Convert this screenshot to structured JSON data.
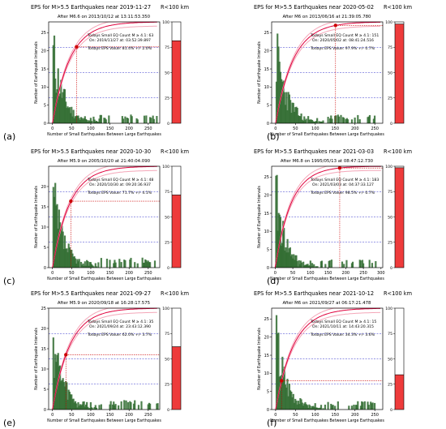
{
  "common": {
    "xlabel": "Number of Small Earthquakes Between Large Earthquakes",
    "ylabel": "Number of Earthquake Intervals",
    "radius": "R<100 km",
    "count_prefix": "Todays Small EQ Count M ≥ 4.1:",
    "on_label": "On:",
    "at_label": "at:",
    "eps_prefix": "Todays EPS Value:",
    "gauge_ticks": [
      "100",
      "75",
      "50",
      "25",
      "0"
    ],
    "colors": {
      "histogram": "#2f6b2f",
      "cdf": "#e0003c",
      "band": "#f4a6b8",
      "hline": "#3333cc",
      "marker": "#cc0000",
      "gauge_fill": "#ee3b3b"
    }
  },
  "chart_data": [
    {
      "type": "bar",
      "panel_label": "(a)",
      "title": "EPS for M>5.5 Earthquakes near 2019-11-27",
      "subtitle": "After M6.6 on 2013/10/12 at 13:11:53.350",
      "ylim": [
        0,
        28
      ],
      "yticks": [
        0,
        5,
        10,
        15,
        20,
        25
      ],
      "xlim": [
        -10,
        280
      ],
      "xticks": [
        0,
        50,
        100,
        150,
        200,
        250
      ],
      "count": "63",
      "date": "2019/11/27",
      "time": "03:52:39.897",
      "eps": "81.4% +/- 2.0%",
      "eps_value": 81.4,
      "marker_x": 63
    },
    {
      "type": "bar",
      "panel_label": "(b)",
      "title": "EPS for M>5.5 Earthquakes near 2020-05-02",
      "subtitle": "After M6 on 2013/06/16 at 21:39:05.780",
      "ylim": [
        0,
        28
      ],
      "yticks": [
        0,
        5,
        10,
        15,
        20,
        25
      ],
      "xlim": [
        -10,
        270
      ],
      "xticks": [
        0,
        50,
        100,
        150,
        200,
        250
      ],
      "count": "151",
      "date": "2020/05/02",
      "time": "08:41:24.516",
      "eps": "97.9% +/- 0.7%",
      "eps_value": 97.9,
      "marker_x": 151
    },
    {
      "type": "bar",
      "panel_label": "(c)",
      "title": "EPS for M>5.5 Earthquakes near 2020-10-30",
      "subtitle": "After M5.9 on 2005/10/20 at 21:40:04.090",
      "ylim": [
        0,
        25
      ],
      "yticks": [
        0,
        5,
        10,
        15,
        20
      ],
      "xlim": [
        -10,
        280
      ],
      "xticks": [
        0,
        50,
        100,
        150,
        200,
        250
      ],
      "count": "48",
      "date": "2020/10/30",
      "time": "09:20:36.937",
      "eps": "71.7% +/- 4.1%",
      "eps_value": 71.7,
      "marker_x": 48
    },
    {
      "type": "bar",
      "panel_label": "(d)",
      "title": "EPS for M>5.5 Earthquakes near 2021-03-03",
      "subtitle": "After M6.8 on 1995/05/13 at 08:47:12.730",
      "ylim": [
        0,
        28
      ],
      "yticks": [
        0,
        5,
        10,
        15,
        20,
        25
      ],
      "xlim": [
        -10,
        305
      ],
      "xticks": [
        0,
        50,
        100,
        150,
        200,
        250,
        300
      ],
      "count": "183",
      "date": "2021/03/03",
      "time": "04:37:33.127",
      "eps": "98.5% +/- 0.7%",
      "eps_value": 98.5,
      "marker_x": 183
    },
    {
      "type": "bar",
      "panel_label": "(e)",
      "title": "EPS for M>5.5 Earthquakes near 2021-09-27",
      "subtitle": "After M5.9 on 2020/09/18 at 16:28:17.575",
      "ylim": [
        0,
        25
      ],
      "yticks": [
        0,
        5,
        10,
        15,
        20,
        25
      ],
      "xlim": [
        -10,
        280
      ],
      "xticks": [
        0,
        50,
        100,
        150,
        200,
        250
      ],
      "count": "35",
      "date": "2021/09/24",
      "time": "23:43:12.390",
      "eps": "62.0% +/- 3.7%",
      "eps_value": 62.0,
      "marker_x": 35
    },
    {
      "type": "bar",
      "panel_label": "(f)",
      "title": "EPS for M>5.5 Earthquakes near 2021-10-12",
      "subtitle": "After M6 on 2021/09/27 at 06:17:21.478",
      "ylim": [
        0,
        28
      ],
      "yticks": [
        0,
        5,
        10,
        15,
        20,
        25
      ],
      "xlim": [
        -10,
        270
      ],
      "xticks": [
        0,
        50,
        100,
        150,
        200,
        250
      ],
      "count": "15",
      "date": "2021/10/11",
      "time": "14:43:20.315",
      "eps": "34.3% +/- 3.6%",
      "eps_value": 34.3,
      "marker_x": 15
    }
  ]
}
